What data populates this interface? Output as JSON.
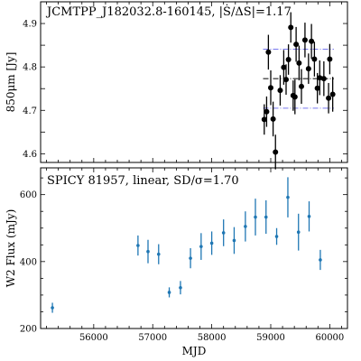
{
  "chart_data": [
    {
      "type": "scatter",
      "title": "JCMTPP_J182032.8-160145, |Ṡ/ΔS|=1.17",
      "ylabel": "850μm [Jy]",
      "xlabel": "",
      "xlim": [
        55100,
        60300
      ],
      "ylim": [
        4.58,
        4.95
      ],
      "yticks": [
        "4.6",
        "4.7",
        "4.8",
        "4.9"
      ],
      "grid": false,
      "reference_lines": [
        {
          "y": 4.841,
          "style": "dash-dot",
          "color": "#7777ee"
        },
        {
          "y": 4.773,
          "style": "dash-dot",
          "color": "#000000"
        },
        {
          "y": 4.705,
          "style": "dash-dot",
          "color": "#7777ee"
        }
      ],
      "point_color": "#000000",
      "series": [
        {
          "x": [
            58890,
            58930,
            58960,
            59000,
            59040,
            59080,
            59160,
            59220,
            59260,
            59300,
            59340,
            59380,
            59410,
            59430,
            59480,
            59520,
            59580,
            59640,
            59690,
            59740,
            59790,
            59830,
            59900,
            59980,
            60000,
            60050
          ],
          "y": [
            4.679,
            4.697,
            4.834,
            4.752,
            4.68,
            4.604,
            4.746,
            4.799,
            4.771,
            4.817,
            4.891,
            4.734,
            4.731,
            4.852,
            4.809,
            4.755,
            4.862,
            4.796,
            4.859,
            4.818,
            4.751,
            4.775,
            4.773,
            4.728,
            4.818,
            4.737
          ],
          "yerr": [
            0.035,
            0.035,
            0.04,
            0.04,
            0.04,
            0.04,
            0.035,
            0.04,
            0.035,
            0.035,
            0.035,
            0.035,
            0.04,
            0.04,
            0.04,
            0.04,
            0.04,
            0.035,
            0.04,
            0.04,
            0.035,
            0.04,
            0.04,
            0.035,
            0.035,
            0.04
          ]
        }
      ]
    },
    {
      "type": "scatter",
      "title": "SPICY 81957, linear, SD/σ=1.70",
      "ylabel": "W2 Flux (mJy)",
      "xlabel": "MJD",
      "xlim": [
        55100,
        60300
      ],
      "ylim": [
        200,
        680
      ],
      "yticks": [
        "200",
        "400",
        "600"
      ],
      "xticks": [
        "56000",
        "57000",
        "58000",
        "59000",
        "60000"
      ],
      "grid": false,
      "point_color": "#1f77b4",
      "series": [
        {
          "x": [
            55300,
            56750,
            56920,
            57100,
            57280,
            57470,
            57640,
            57820,
            58000,
            58200,
            58380,
            58570,
            58740,
            58920,
            59100,
            59290,
            59470,
            59650,
            59840
          ],
          "y": [
            262,
            448,
            430,
            422,
            308,
            322,
            410,
            445,
            455,
            486,
            463,
            505,
            533,
            533,
            475,
            592,
            488,
            535,
            405
          ],
          "yerr": [
            15,
            30,
            35,
            30,
            15,
            20,
            30,
            40,
            35,
            40,
            40,
            45,
            55,
            50,
            25,
            60,
            55,
            45,
            30
          ]
        }
      ]
    }
  ]
}
